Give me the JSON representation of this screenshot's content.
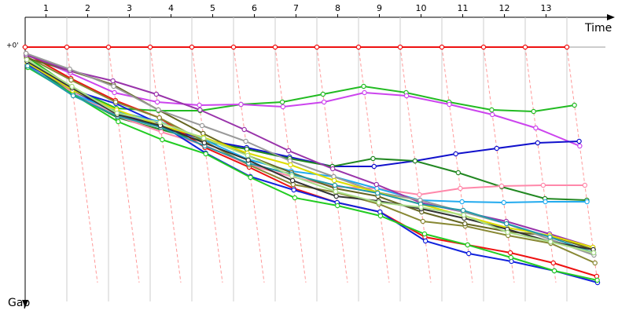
{
  "chart_data": {
    "type": "line",
    "x_label": "Time",
    "y_label": "Gap",
    "x": [
      0,
      1,
      2,
      3,
      4,
      5,
      6,
      7,
      8,
      9,
      10,
      11,
      12,
      13
    ],
    "xlim": [
      0,
      14
    ],
    "xticks": [
      {
        "value": 0.5,
        "label": "1"
      },
      {
        "value": 1.5,
        "label": "2"
      },
      {
        "value": 2.5,
        "label": "3"
      },
      {
        "value": 3.5,
        "label": "4"
      },
      {
        "value": 4.5,
        "label": "5"
      },
      {
        "value": 5.5,
        "label": "6"
      },
      {
        "value": 6.5,
        "label": "7"
      },
      {
        "value": 7.5,
        "label": "8"
      },
      {
        "value": 8.5,
        "label": "9"
      },
      {
        "value": 9.5,
        "label": "10"
      },
      {
        "value": 10.5,
        "label": "11"
      },
      {
        "value": 11.5,
        "label": "12"
      },
      {
        "value": 12.5,
        "label": "13"
      }
    ],
    "ylim": [
      0,
      300
    ],
    "y_inverted": true,
    "yticks": [
      {
        "value": 0,
        "label": "+0'"
      }
    ],
    "series": [
      {
        "color": "#ee1111",
        "values": [
          0,
          0,
          0,
          0,
          0,
          0,
          0,
          0,
          0,
          0,
          0,
          0,
          0,
          0
        ]
      },
      {
        "color": "#22bb22",
        "values": [
          12,
          52,
          78,
          81,
          81,
          73,
          70,
          60,
          50,
          58,
          70,
          80,
          82,
          74
        ]
      },
      {
        "color": "#cc44ee",
        "values": [
          10,
          33,
          58,
          70,
          74,
          73,
          76,
          70,
          58,
          62,
          73,
          86,
          103,
          126
        ]
      },
      {
        "color": "#1111cc",
        "values": [
          18,
          55,
          85,
          100,
          118,
          128,
          140,
          152,
          152,
          145,
          136,
          129,
          122,
          120
        ]
      },
      {
        "color": "#228822",
        "values": [
          20,
          60,
          90,
          105,
          120,
          130,
          142,
          152,
          142,
          145,
          160,
          178,
          193,
          195
        ]
      },
      {
        "color": "#ff88aa",
        "values": [
          15,
          58,
          88,
          108,
          125,
          150,
          165,
          178,
          180,
          188,
          180,
          177,
          176,
          176
        ]
      },
      {
        "color": "#22aaee",
        "values": [
          25,
          60,
          82,
          95,
          118,
          143,
          158,
          165,
          180,
          195,
          197,
          198,
          197,
          197
        ]
      },
      {
        "color": "#ee1111",
        "values": [
          8,
          40,
          68,
          90,
          128,
          153,
          180,
          198,
          210,
          242,
          252,
          262,
          275,
          292
        ]
      },
      {
        "color": "#1122dd",
        "values": [
          22,
          55,
          72,
          98,
          135,
          165,
          182,
          198,
          210,
          247,
          263,
          273,
          285,
          300
        ]
      },
      {
        "color": "#22cc22",
        "values": [
          26,
          60,
          95,
          118,
          136,
          166,
          192,
          202,
          215,
          238,
          252,
          268,
          285,
          297
        ]
      },
      {
        "color": "#888833",
        "values": [
          12,
          42,
          70,
          90,
          120,
          150,
          175,
          185,
          200,
          222,
          228,
          240,
          250,
          275
        ]
      },
      {
        "color": "#666622",
        "values": [
          14,
          30,
          48,
          80,
          110,
          138,
          160,
          180,
          190,
          210,
          225,
          235,
          240,
          258
        ]
      },
      {
        "color": "#9933aa",
        "values": [
          10,
          30,
          43,
          60,
          80,
          105,
          132,
          155,
          175,
          198,
          210,
          222,
          238,
          255
        ]
      },
      {
        "color": "#999999",
        "values": [
          8,
          28,
          50,
          80,
          100,
          120,
          145,
          165,
          185,
          195,
          210,
          225,
          245,
          265
        ]
      },
      {
        "color": "#dddd00",
        "values": [
          20,
          55,
          80,
          100,
          115,
          135,
          150,
          170,
          185,
          200,
          215,
          230,
          240,
          255
        ]
      },
      {
        "color": "#2299aa",
        "values": [
          24,
          62,
          88,
          102,
          126,
          148,
          162,
          176,
          186,
          200,
          208,
          225,
          242,
          262
        ]
      },
      {
        "color": "#333333",
        "values": [
          18,
          52,
          86,
          100,
          122,
          144,
          170,
          190,
          196,
          206,
          218,
          232,
          248,
          258
        ]
      },
      {
        "color": "#aadd88",
        "values": [
          16,
          50,
          84,
          96,
          116,
          138,
          164,
          184,
          198,
          204,
          214,
          236,
          248,
          262
        ]
      }
    ]
  }
}
